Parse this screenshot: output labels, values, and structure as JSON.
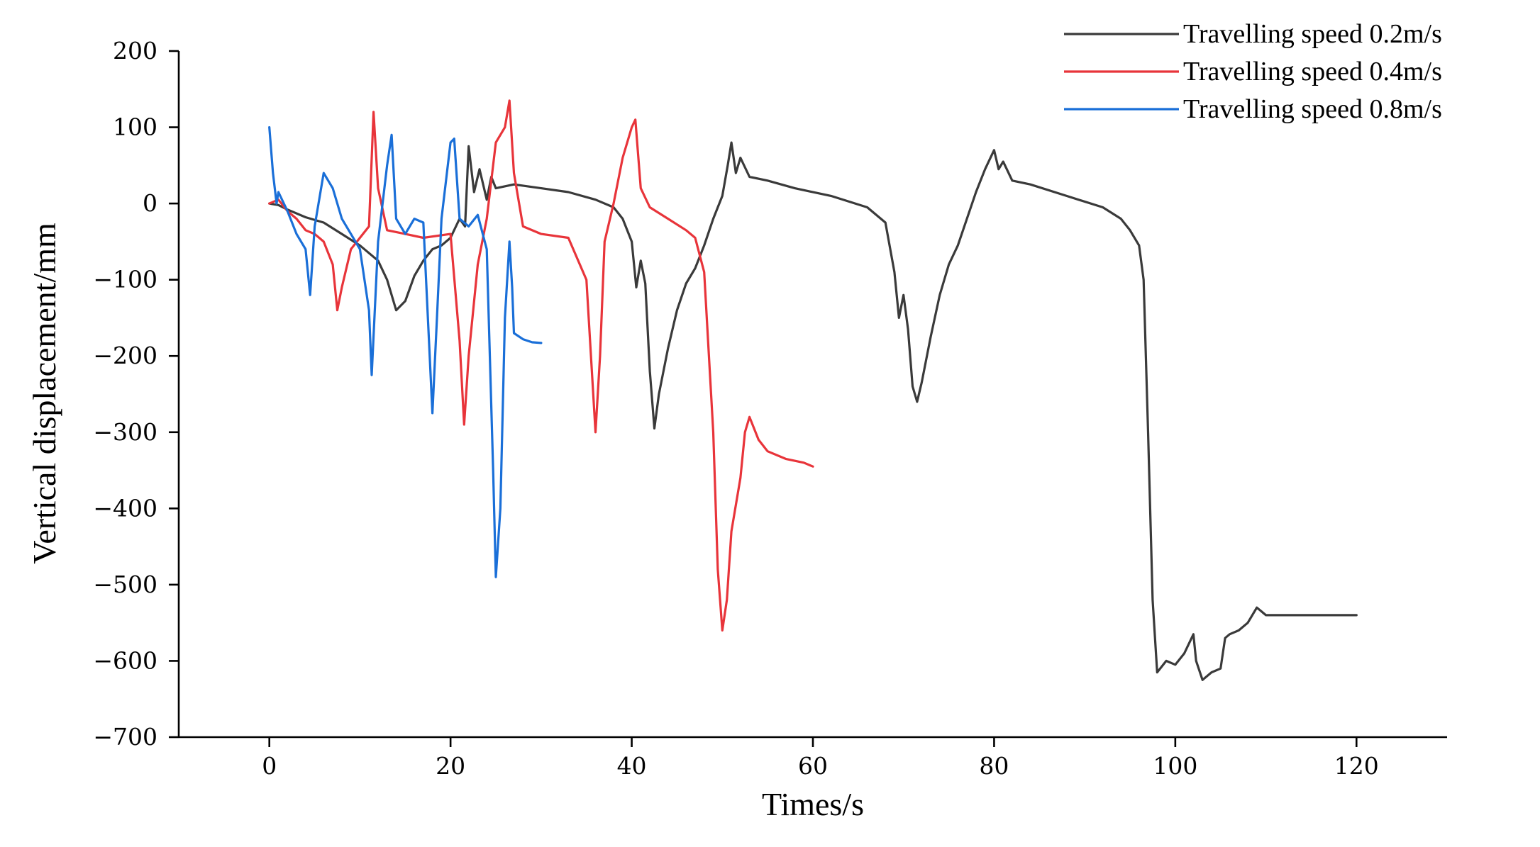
{
  "chart_data": {
    "type": "line",
    "title": "",
    "xlabel": "Times/s",
    "ylabel": "Vertical displacement/mm",
    "xlim": [
      -10,
      130
    ],
    "ylim": [
      -700,
      200
    ],
    "xticks": [
      0,
      20,
      40,
      60,
      80,
      100,
      120
    ],
    "yticks": [
      200,
      100,
      0,
      -100,
      -200,
      -300,
      -400,
      -500,
      -600,
      -700
    ],
    "xtick_labels": [
      "0",
      "20",
      "40",
      "60",
      "80",
      "100",
      "120"
    ],
    "ytick_labels": [
      "200",
      "100",
      "0",
      "−100",
      "−200",
      "−300",
      "−400",
      "−500",
      "−600",
      "−700"
    ],
    "grid": false,
    "legend_position": "top-right",
    "series": [
      {
        "name": "Travelling speed 0.2m/s",
        "color": "#3a3a3a",
        "points": [
          [
            0,
            0
          ],
          [
            1,
            -2
          ],
          [
            2,
            -8
          ],
          [
            4,
            -18
          ],
          [
            6,
            -25
          ],
          [
            8,
            -40
          ],
          [
            10,
            -55
          ],
          [
            12,
            -75
          ],
          [
            13,
            -100
          ],
          [
            14,
            -140
          ],
          [
            15,
            -128
          ],
          [
            16,
            -95
          ],
          [
            17,
            -75
          ],
          [
            18,
            -60
          ],
          [
            19,
            -55
          ],
          [
            20,
            -45
          ],
          [
            21,
            -20
          ],
          [
            21.6,
            -30
          ],
          [
            22,
            75
          ],
          [
            22.6,
            15
          ],
          [
            23.2,
            45
          ],
          [
            24,
            5
          ],
          [
            24.5,
            35
          ],
          [
            25,
            20
          ],
          [
            27,
            25
          ],
          [
            30,
            20
          ],
          [
            33,
            15
          ],
          [
            36,
            5
          ],
          [
            38,
            -5
          ],
          [
            39,
            -20
          ],
          [
            40,
            -50
          ],
          [
            40.5,
            -110
          ],
          [
            41,
            -75
          ],
          [
            41.5,
            -105
          ],
          [
            42,
            -220
          ],
          [
            42.5,
            -295
          ],
          [
            43,
            -250
          ],
          [
            44,
            -190
          ],
          [
            45,
            -140
          ],
          [
            46,
            -105
          ],
          [
            47,
            -85
          ],
          [
            48,
            -55
          ],
          [
            49,
            -20
          ],
          [
            50,
            10
          ],
          [
            50.6,
            50
          ],
          [
            51,
            80
          ],
          [
            51.5,
            40
          ],
          [
            52,
            60
          ],
          [
            53,
            35
          ],
          [
            55,
            30
          ],
          [
            58,
            20
          ],
          [
            62,
            10
          ],
          [
            66,
            -5
          ],
          [
            68,
            -25
          ],
          [
            69,
            -90
          ],
          [
            69.5,
            -150
          ],
          [
            70,
            -120
          ],
          [
            70.5,
            -165
          ],
          [
            71,
            -240
          ],
          [
            71.5,
            -260
          ],
          [
            72,
            -235
          ],
          [
            73,
            -175
          ],
          [
            74,
            -120
          ],
          [
            75,
            -80
          ],
          [
            76,
            -55
          ],
          [
            77,
            -20
          ],
          [
            78,
            15
          ],
          [
            79,
            45
          ],
          [
            80,
            70
          ],
          [
            80.5,
            45
          ],
          [
            81,
            55
          ],
          [
            82,
            30
          ],
          [
            84,
            25
          ],
          [
            88,
            10
          ],
          [
            92,
            -5
          ],
          [
            94,
            -20
          ],
          [
            95,
            -35
          ],
          [
            96,
            -55
          ],
          [
            96.5,
            -100
          ],
          [
            97,
            -300
          ],
          [
            97.5,
            -520
          ],
          [
            98,
            -615
          ],
          [
            99,
            -600
          ],
          [
            100,
            -605
          ],
          [
            101,
            -590
          ],
          [
            102,
            -565
          ],
          [
            102.3,
            -600
          ],
          [
            103,
            -625
          ],
          [
            104,
            -615
          ],
          [
            105,
            -610
          ],
          [
            105.5,
            -570
          ],
          [
            106,
            -565
          ],
          [
            107,
            -560
          ],
          [
            108,
            -550
          ],
          [
            109,
            -530
          ],
          [
            110,
            -540
          ],
          [
            112,
            -540
          ],
          [
            115,
            -540
          ],
          [
            118,
            -540
          ],
          [
            120,
            -540
          ]
        ]
      },
      {
        "name": "Travelling speed 0.4m/s",
        "color": "#e8343a",
        "points": [
          [
            0,
            0
          ],
          [
            1,
            5
          ],
          [
            2,
            -10
          ],
          [
            3,
            -20
          ],
          [
            4,
            -35
          ],
          [
            5,
            -40
          ],
          [
            6,
            -50
          ],
          [
            7,
            -80
          ],
          [
            7.5,
            -140
          ],
          [
            8,
            -110
          ],
          [
            9,
            -60
          ],
          [
            10,
            -45
          ],
          [
            11,
            -30
          ],
          [
            11.5,
            120
          ],
          [
            12,
            20
          ],
          [
            13,
            -35
          ],
          [
            15,
            -40
          ],
          [
            17,
            -45
          ],
          [
            20,
            -40
          ],
          [
            21,
            -180
          ],
          [
            21.5,
            -290
          ],
          [
            22,
            -200
          ],
          [
            23,
            -80
          ],
          [
            24,
            -20
          ],
          [
            25,
            80
          ],
          [
            26,
            100
          ],
          [
            26.5,
            135
          ],
          [
            27,
            40
          ],
          [
            28,
            -30
          ],
          [
            30,
            -40
          ],
          [
            33,
            -45
          ],
          [
            35,
            -100
          ],
          [
            36,
            -300
          ],
          [
            36.5,
            -200
          ],
          [
            37,
            -50
          ],
          [
            38,
            0
          ],
          [
            39,
            60
          ],
          [
            40,
            100
          ],
          [
            40.4,
            110
          ],
          [
            41,
            20
          ],
          [
            42,
            -5
          ],
          [
            44,
            -20
          ],
          [
            46,
            -35
          ],
          [
            47,
            -45
          ],
          [
            48,
            -90
          ],
          [
            49,
            -300
          ],
          [
            49.5,
            -480
          ],
          [
            50,
            -560
          ],
          [
            50.5,
            -520
          ],
          [
            51,
            -430
          ],
          [
            52,
            -360
          ],
          [
            52.5,
            -300
          ],
          [
            53,
            -280
          ],
          [
            54,
            -310
          ],
          [
            55,
            -325
          ],
          [
            57,
            -335
          ],
          [
            59,
            -340
          ],
          [
            60,
            -345
          ]
        ]
      },
      {
        "name": "Travelling speed 0.8m/s",
        "color": "#1a6fd8",
        "points": [
          [
            0,
            100
          ],
          [
            0.4,
            40
          ],
          [
            0.8,
            0
          ],
          [
            1,
            15
          ],
          [
            2,
            -10
          ],
          [
            3,
            -40
          ],
          [
            4,
            -60
          ],
          [
            4.5,
            -120
          ],
          [
            5,
            -30
          ],
          [
            6,
            40
          ],
          [
            7,
            20
          ],
          [
            8,
            -20
          ],
          [
            9,
            -40
          ],
          [
            10,
            -60
          ],
          [
            11,
            -140
          ],
          [
            11.3,
            -225
          ],
          [
            12,
            -50
          ],
          [
            13,
            50
          ],
          [
            13.5,
            90
          ],
          [
            14,
            -20
          ],
          [
            15,
            -40
          ],
          [
            16,
            -20
          ],
          [
            17,
            -25
          ],
          [
            17.5,
            -150
          ],
          [
            18,
            -275
          ],
          [
            18.5,
            -150
          ],
          [
            19,
            -20
          ],
          [
            20,
            80
          ],
          [
            20.4,
            85
          ],
          [
            21,
            -20
          ],
          [
            22,
            -30
          ],
          [
            23,
            -15
          ],
          [
            24,
            -60
          ],
          [
            24.7,
            -350
          ],
          [
            25,
            -490
          ],
          [
            25.5,
            -400
          ],
          [
            26,
            -150
          ],
          [
            26.5,
            -50
          ],
          [
            26.8,
            -110
          ],
          [
            27,
            -170
          ],
          [
            28,
            -178
          ],
          [
            29,
            -182
          ],
          [
            30,
            -183
          ]
        ]
      }
    ]
  }
}
